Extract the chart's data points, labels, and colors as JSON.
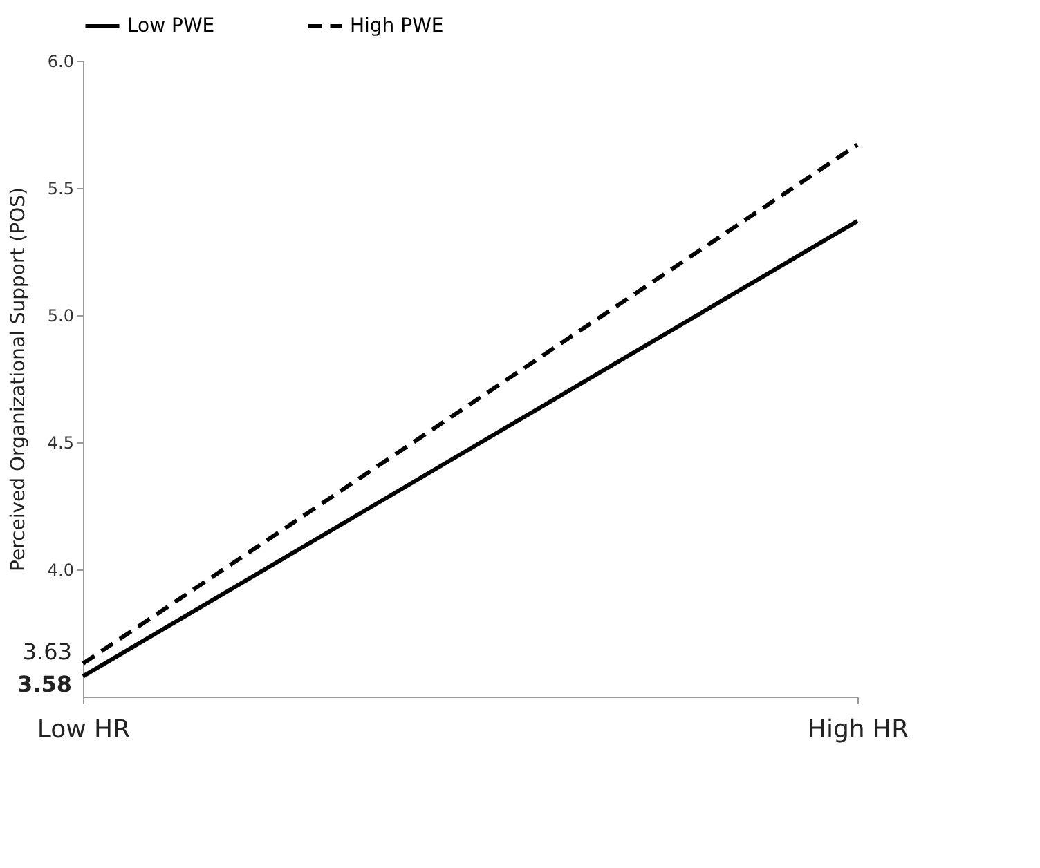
{
  "chart_data": {
    "type": "line",
    "ylabel": "Perceived Organizational Support (POS)",
    "categories": [
      "Low HR",
      "High HR"
    ],
    "series": [
      {
        "name": "Low PWE",
        "color": "#000000",
        "line_style": "solid",
        "values": [
          3.58,
          5.37
        ],
        "value_labels": [
          "3.58",
          null
        ]
      },
      {
        "name": "High PWE",
        "color": "#000000",
        "line_style": "dashed",
        "values": [
          3.63,
          5.67
        ],
        "value_labels": [
          "3.63",
          null
        ]
      }
    ],
    "ylim": [
      3.5,
      6.0
    ],
    "yticks": [
      {
        "value": 4,
        "label": "4.0"
      },
      4.5,
      {
        "value": 5,
        "label": "5.0"
      },
      5.5,
      {
        "value": 6,
        "label": "6.0"
      }
    ],
    "grid": false,
    "legend": "top",
    "marker": "none"
  }
}
